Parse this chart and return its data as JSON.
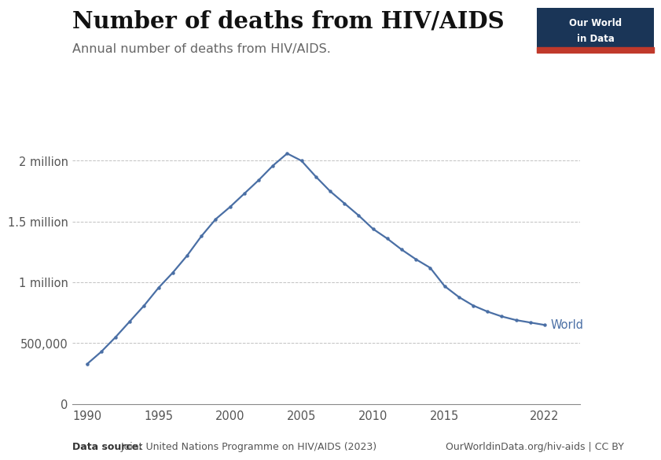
{
  "title": "Number of deaths from HIV/AIDS",
  "subtitle": "Annual number of deaths from HIV/AIDS.",
  "line_color": "#4a6fa5",
  "background_color": "#ffffff",
  "years": [
    1990,
    1991,
    1992,
    1993,
    1994,
    1995,
    1996,
    1997,
    1998,
    1999,
    2000,
    2001,
    2002,
    2003,
    2004,
    2005,
    2006,
    2007,
    2008,
    2009,
    2010,
    2011,
    2012,
    2013,
    2014,
    2015,
    2016,
    2017,
    2018,
    2019,
    2020,
    2021,
    2022
  ],
  "deaths": [
    328000,
    430000,
    550000,
    680000,
    810000,
    955000,
    1080000,
    1220000,
    1380000,
    1520000,
    1620000,
    1730000,
    1840000,
    1960000,
    2060000,
    2000000,
    1870000,
    1750000,
    1650000,
    1550000,
    1440000,
    1360000,
    1270000,
    1190000,
    1120000,
    970000,
    880000,
    810000,
    760000,
    720000,
    690000,
    670000,
    650000
  ],
  "yticks": [
    0,
    500000,
    1000000,
    1500000,
    2000000
  ],
  "ytick_labels": [
    "0",
    "500,000",
    "1 million",
    "1.5 million",
    "2 million"
  ],
  "xticks": [
    1990,
    1995,
    2000,
    2005,
    2010,
    2015,
    2022
  ],
  "xlim": [
    1989.0,
    2024.5
  ],
  "ylim": [
    0,
    2250000
  ],
  "series_label": "World",
  "data_source_bold": "Data source:",
  "data_source_normal": " Joint United Nations Programme on HIV/AIDS (2023)",
  "owid_url": "OurWorldinData.org/hiv-aids | CC BY",
  "owid_box_color": "#1a3557",
  "owid_box_text_line1": "Our World",
  "owid_box_text_line2": "in Data",
  "owid_red": "#c0392b",
  "title_fontsize": 21,
  "subtitle_fontsize": 11.5,
  "tick_fontsize": 10.5,
  "label_fontsize": 10.5,
  "footer_fontsize": 9
}
